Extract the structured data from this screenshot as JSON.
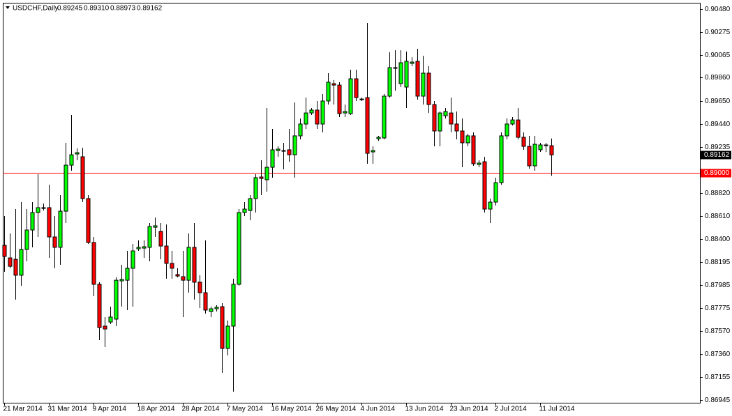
{
  "chart_data": {
    "type": "candlestick",
    "symbol": "USDCHF,Daily",
    "ohlc_text": [
      "0.89245",
      "0.89310",
      "0.88973",
      "0.89162"
    ],
    "categories": [
      "21 Mar 2014",
      null,
      null,
      null,
      null,
      null,
      null,
      null,
      "31 Mar 2014",
      null,
      null,
      null,
      null,
      null,
      null,
      null,
      "9 Apr 2014",
      null,
      null,
      null,
      null,
      null,
      null,
      null,
      "18 Apr 2014",
      null,
      null,
      null,
      null,
      null,
      null,
      null,
      "28 Apr 2014",
      null,
      null,
      null,
      null,
      null,
      null,
      null,
      "7 May 2014",
      null,
      null,
      null,
      null,
      null,
      null,
      null,
      "16 May 2014",
      null,
      null,
      null,
      null,
      null,
      null,
      null,
      "26 May 2014",
      null,
      null,
      null,
      null,
      null,
      null,
      null,
      "4 Jun 2014",
      null,
      null,
      null,
      null,
      null,
      null,
      null,
      "13 Jun 2014",
      null,
      null,
      null,
      null,
      null,
      null,
      null,
      "23 Jun 2014",
      null,
      null,
      null,
      null,
      null,
      null,
      null,
      "2 Jul 2014",
      null,
      null,
      null,
      null,
      null,
      null,
      null,
      "11 Jul 2014",
      null,
      null
    ],
    "open": [
      0.88344,
      0.88231,
      0.88218,
      0.88074,
      0.88307,
      0.88483,
      0.88641,
      0.88685,
      0.88685,
      0.8842,
      0.88326,
      0.88653,
      0.89069,
      0.8917,
      0.89145,
      0.88767,
      0.8837,
      0.87992,
      0.87614,
      0.87651,
      0.87677,
      0.88023,
      0.88029,
      0.88137,
      0.88313,
      0.88319,
      0.88326,
      0.88508,
      0.8847,
      0.88338,
      0.88181,
      0.8808,
      0.88061,
      0.88029,
      0.88326,
      0.88011,
      0.87916,
      0.87746,
      0.87771,
      0.8779,
      0.87412,
      0.87614,
      0.87992,
      0.88641,
      0.88659,
      0.88767,
      0.88962,
      0.88937,
      0.8905,
      0.89201,
      0.89195,
      0.89208,
      0.89163,
      0.89334,
      0.89441,
      0.89541,
      0.89567,
      0.89441,
      0.89649,
      0.89806,
      0.89793,
      0.89541,
      0.89535,
      0.8985,
      0.89667,
      0.8968,
      0.89189,
      0.89308,
      0.89315,
      0.89693,
      0.89951,
      0.89806,
      0.89775,
      0.89989,
      0.90008,
      0.89693,
      0.89901,
      0.89617,
      0.89378,
      0.89516,
      0.89541,
      0.89441,
      0.89378,
      0.89271,
      0.89334,
      0.89075,
      0.891,
      0.88672,
      0.88735,
      0.88911,
      0.89334,
      0.89441,
      0.89478,
      0.89321,
      0.89239,
      0.89063,
      0.89208,
      0.89252,
      0.89245
    ],
    "high": [
      0.88609,
      0.88452,
      0.88672,
      0.88735,
      0.88672,
      0.88735,
      0.88987,
      0.88722,
      0.88893,
      0.88609,
      0.88798,
      0.89271,
      0.89523,
      0.8922,
      0.89226,
      0.88798,
      0.8842,
      0.88011,
      0.87696,
      0.8779,
      0.88055,
      0.88168,
      0.88294,
      0.88357,
      0.88389,
      0.88389,
      0.88546,
      0.88596,
      0.88546,
      0.88533,
      0.88294,
      0.88137,
      0.88294,
      0.88452,
      0.88546,
      0.88074,
      0.88389,
      0.8779,
      0.87803,
      0.87822,
      0.87664,
      0.88042,
      0.88672,
      0.88735,
      0.88798,
      0.88987,
      0.89113,
      0.89586,
      0.89397,
      0.89239,
      0.89271,
      0.89397,
      0.89636,
      0.89491,
      0.8968,
      0.89586,
      0.89649,
      0.89712,
      0.89901,
      0.89838,
      0.89819,
      0.89617,
      0.89932,
      0.89932,
      0.8968,
      0.90354,
      0.89239,
      0.89334,
      0.89712,
      0.9009,
      0.90108,
      0.90108,
      0.90096,
      0.90045,
      0.90121,
      0.90058,
      0.89964,
      0.89649,
      0.89554,
      0.89586,
      0.8968,
      0.89554,
      0.89491,
      0.89352,
      0.89365,
      0.89113,
      0.89144,
      0.88767,
      0.88956,
      0.89365,
      0.89491,
      0.89504,
      0.89586,
      0.89365,
      0.89334,
      0.89334,
      0.89271,
      0.89271,
      0.8931
    ],
    "low": [
      0.88105,
      0.88137,
      0.87853,
      0.87979,
      0.882,
      0.88326,
      0.8842,
      0.88659,
      0.88231,
      0.88137,
      0.88168,
      0.88546,
      0.89019,
      0.89113,
      0.88735,
      0.88357,
      0.87885,
      0.87488,
      0.87425,
      0.87633,
      0.87614,
      0.8779,
      0.87759,
      0.8779,
      0.88294,
      0.88231,
      0.882,
      0.8842,
      0.88218,
      0.88042,
      0.88042,
      0.88055,
      0.87696,
      0.87916,
      0.87853,
      0.87777,
      0.87727,
      0.87696,
      0.87746,
      0.87192,
      0.87349,
      0.87021,
      0.87979,
      0.88609,
      0.88571,
      0.88641,
      0.88798,
      0.8883,
      0.88956,
      0.89145,
      0.89031,
      0.891,
      0.88956,
      0.89302,
      0.89397,
      0.89523,
      0.89397,
      0.89365,
      0.89617,
      0.89617,
      0.89504,
      0.89504,
      0.89523,
      0.89649,
      0.89649,
      0.89082,
      0.89082,
      0.89289,
      0.89302,
      0.8968,
      0.89743,
      0.89775,
      0.89586,
      0.89964,
      0.89661,
      0.89617,
      0.89541,
      0.89239,
      0.89239,
      0.89491,
      0.89365,
      0.89302,
      0.8905,
      0.89239,
      0.89063,
      0.8905,
      0.88641,
      0.88546,
      0.88704,
      0.88892,
      0.89302,
      0.89428,
      0.89302,
      0.89208,
      0.89037,
      0.89019,
      0.89189,
      0.89189,
      0.88973
    ],
    "close": [
      0.88244,
      0.88155,
      0.88074,
      0.88307,
      0.88483,
      0.88641,
      0.88685,
      0.88678,
      0.8842,
      0.88326,
      0.88653,
      0.89069,
      0.89163,
      0.89182,
      0.88767,
      0.8837,
      0.87992,
      0.87601,
      0.87588,
      0.87696,
      0.88029,
      0.88036,
      0.88137,
      0.88294,
      0.88326,
      0.88332,
      0.88515,
      0.88521,
      0.88338,
      0.88181,
      0.88137,
      0.88067,
      0.88029,
      0.88326,
      0.88011,
      0.87916,
      0.87759,
      0.87771,
      0.87784,
      0.87412,
      0.87614,
      0.87992,
      0.88641,
      0.88672,
      0.88767,
      0.88956,
      0.88949,
      0.8905,
      0.89208,
      0.89214,
      0.89201,
      0.89163,
      0.89334,
      0.89441,
      0.89541,
      0.89567,
      0.89441,
      0.89649,
      0.89819,
      0.89793,
      0.89535,
      0.89554,
      0.8985,
      0.8968,
      0.89661,
      0.89176,
      0.89201,
      0.89321,
      0.89693,
      0.89951,
      0.89945,
      0.89995,
      0.90008,
      0.90001,
      0.89693,
      0.89901,
      0.89617,
      0.89378,
      0.89541,
      0.89554,
      0.89441,
      0.89378,
      0.89271,
      0.89334,
      0.89082,
      0.89088,
      0.88672,
      0.88735,
      0.88911,
      0.89334,
      0.89441,
      0.89478,
      0.89321,
      0.89239,
      0.89063,
      0.89258,
      0.89252,
      0.89245,
      0.89162
    ],
    "up_color": "#00ff00",
    "down_color": "#ff0000",
    "ylim": [
      0.86921,
      0.90537
    ],
    "yticks": [
      {
        "value": 0.9048,
        "label": "0.90480"
      },
      0.90275,
      0.90065,
      {
        "value": 0.8986,
        "label": "0.89860"
      },
      {
        "value": 0.8965,
        "label": "0.89650"
      },
      {
        "value": 0.8944,
        "label": "0.89440"
      },
      0.89235,
      {
        "value": 0.8882,
        "label": "0.88820"
      },
      {
        "value": 0.8861,
        "label": "0.88610"
      },
      {
        "value": 0.884,
        "label": "0.88400"
      },
      0.88195,
      0.87985,
      0.87775,
      {
        "value": 0.8757,
        "label": "0.87570"
      },
      {
        "value": 0.8736,
        "label": "0.87360"
      },
      0.87155,
      0.86945
    ],
    "last_price": 0.89162,
    "level_line": {
      "value": 0.89,
      "label": "0.89000",
      "color": "#ff0000"
    }
  }
}
